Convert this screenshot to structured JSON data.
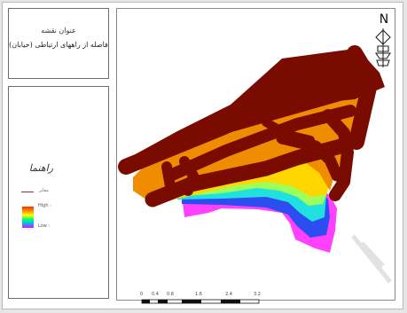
{
  "map": {
    "title_heading": "عنوان نقشه",
    "title_text": "فاصله از راههای ارتباطی (خیابان)",
    "legend": {
      "heading": "راهنما",
      "line_label": "معابر",
      "high_label": "High :",
      "low_label": "Low :"
    },
    "north_label": "N",
    "scale_ticks": [
      "0",
      "0.4",
      "0.8",
      "1.6",
      "2.4",
      "3.2"
    ],
    "colors": {
      "road": "#7a0b00",
      "band1": "#f08c00",
      "band2": "#ffd600",
      "band3": "#9cff5a",
      "band4": "#20e0e0",
      "band5": "#2c4df0",
      "band6": "#ff40ff"
    }
  }
}
